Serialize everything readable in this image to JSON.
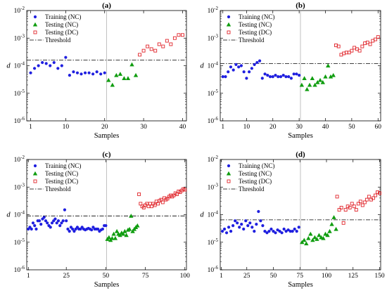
{
  "colors": {
    "training": "#1f1fdf",
    "testing_nc": "#109d10",
    "testing_dc": "#e0242a",
    "threshold": "#000000",
    "divider": "#a8a8a8"
  },
  "chart_data": [
    {
      "type": "scatter",
      "title": "(a)",
      "xlabel": "Samples",
      "ylabel": "d",
      "xlim": [
        0,
        41
      ],
      "ylim": [
        1e-06,
        0.01
      ],
      "yscale": "log",
      "xticks": [
        1,
        10,
        20,
        30,
        40
      ],
      "yticks": [
        "10^-6",
        "10^-5",
        "10^-4",
        "10^-3",
        "10^-2"
      ],
      "grid": false,
      "legend_position": "top-left",
      "divider_x": 20.5,
      "threshold": 0.00016,
      "series": [
        {
          "name": "Training (NC)",
          "x": [
            1,
            2,
            3,
            4,
            5,
            6,
            7,
            8,
            9,
            10,
            11,
            12,
            13,
            14,
            15,
            16,
            17,
            18,
            19,
            20
          ],
          "y": [
            5.5e-05,
            8e-05,
            0.0001,
            0.00013,
            0.00012,
            0.0001,
            0.00013,
            8e-05,
            0.0001,
            0.0002,
            4.5e-05,
            6e-05,
            5.5e-05,
            5e-05,
            5.5e-05,
            5.5e-05,
            5e-05,
            6e-05,
            5e-05,
            5.5e-05
          ]
        },
        {
          "name": "Testing (NC)",
          "x": [
            21,
            22,
            23,
            24,
            25,
            26,
            27,
            28
          ],
          "y": [
            3e-05,
            2e-05,
            4.5e-05,
            5e-05,
            3.5e-05,
            3.5e-05,
            0.00011,
            4.5e-05
          ]
        },
        {
          "name": "Testing (DC)",
          "x": [
            29,
            30,
            31,
            32,
            33,
            34,
            35,
            36,
            37,
            38,
            39,
            40
          ],
          "y": [
            0.00025,
            0.00035,
            0.0005,
            0.0004,
            0.00035,
            0.0006,
            0.0005,
            0.0008,
            0.0006,
            0.001,
            0.0013,
            0.0013
          ]
        },
        {
          "name": "Threshold",
          "y_constant": 0.00016
        }
      ]
    },
    {
      "type": "scatter",
      "title": "(b)",
      "xlabel": "Samples",
      "ylabel": "d",
      "xlim": [
        0,
        61
      ],
      "ylim": [
        1e-06,
        0.01
      ],
      "yscale": "log",
      "xticks": [
        1,
        10,
        20,
        30,
        40,
        50,
        60
      ],
      "yticks": [
        "10^-6",
        "10^-5",
        "10^-4",
        "10^-3",
        "10^-2"
      ],
      "grid": false,
      "legend_position": "top-left",
      "divider_x": 30.5,
      "threshold": 0.00012,
      "series": [
        {
          "name": "Training (NC)",
          "x": [
            1,
            2,
            3,
            4,
            5,
            6,
            7,
            8,
            9,
            10,
            11,
            12,
            13,
            14,
            15,
            16,
            17,
            18,
            19,
            20,
            21,
            22,
            23,
            24,
            25,
            26,
            27,
            28,
            29,
            30
          ],
          "y": [
            4e-05,
            4e-05,
            6e-05,
            9e-05,
            7e-05,
            0.00011,
            9e-05,
            0.0001,
            6e-05,
            3.5e-05,
            6e-05,
            8e-05,
            0.00011,
            0.00013,
            0.00015,
            3.5e-05,
            5e-05,
            4.5e-05,
            4e-05,
            4e-05,
            4.5e-05,
            4e-05,
            4e-05,
            4.5e-05,
            4e-05,
            4e-05,
            3.5e-05,
            5e-05,
            5e-05,
            4.5e-05
          ]
        },
        {
          "name": "Testing (NC)",
          "x": [
            31,
            32,
            33,
            34,
            35,
            36,
            37,
            38,
            39,
            40,
            41,
            42,
            43
          ],
          "y": [
            2e-05,
            3.5e-05,
            1.4e-05,
            2e-05,
            3.5e-05,
            2e-05,
            2.5e-05,
            3e-05,
            2.5e-05,
            4e-05,
            0.0001,
            4e-05,
            4.5e-05
          ]
        },
        {
          "name": "Testing (DC)",
          "x": [
            44,
            45,
            46,
            47,
            48,
            49,
            50,
            51,
            52,
            53,
            54,
            55,
            56,
            57,
            58,
            59,
            60
          ],
          "y": [
            0.00055,
            0.0005,
            0.00025,
            0.00028,
            0.0003,
            0.0003,
            0.00035,
            0.00045,
            0.0004,
            0.00035,
            0.0005,
            0.00065,
            0.0007,
            0.0006,
            0.0008,
            0.0009,
            0.0011
          ]
        },
        {
          "name": "Threshold",
          "y_constant": 0.00012
        }
      ]
    },
    {
      "type": "scatter",
      "title": "(c)",
      "xlabel": "Samples",
      "ylabel": "d",
      "xlim": [
        0,
        101
      ],
      "ylim": [
        1e-06,
        0.01
      ],
      "yscale": "log",
      "xticks": [
        1,
        25,
        50,
        75,
        100
      ],
      "yticks": [
        "10^-6",
        "10^-5",
        "10^-4",
        "10^-3",
        "10^-2"
      ],
      "grid": false,
      "legend_position": "top-left",
      "divider_x": 50.5,
      "threshold": 9e-05,
      "series": [
        {
          "name": "Training (NC)",
          "x": [
            1,
            2,
            3,
            4,
            5,
            6,
            7,
            8,
            9,
            10,
            11,
            12,
            13,
            14,
            15,
            16,
            17,
            18,
            19,
            20,
            21,
            22,
            23,
            24,
            25,
            26,
            27,
            28,
            29,
            30,
            31,
            32,
            33,
            34,
            35,
            36,
            37,
            38,
            39,
            40,
            41,
            42,
            43,
            44,
            45,
            46,
            47,
            48,
            49,
            50
          ],
          "y": [
            3e-05,
            3.5e-05,
            3e-05,
            5e-05,
            4e-05,
            3e-05,
            6e-05,
            6e-05,
            4.5e-05,
            7e-05,
            8e-05,
            6e-05,
            5e-05,
            4e-05,
            3.5e-05,
            5e-05,
            6e-05,
            7e-05,
            5e-05,
            6e-05,
            4e-05,
            5e-05,
            6e-05,
            0.00015,
            6e-05,
            3e-05,
            2.5e-05,
            3.5e-05,
            3e-05,
            2.5e-05,
            3e-05,
            3.5e-05,
            3e-05,
            3e-05,
            3.5e-05,
            3e-05,
            2.8e-05,
            3e-05,
            3.2e-05,
            3e-05,
            2.8e-05,
            3.5e-05,
            3e-05,
            3e-05,
            3e-05,
            2.5e-05,
            2.8e-05,
            3e-05,
            4e-05,
            4e-05
          ]
        },
        {
          "name": "Testing (NC)",
          "x": [
            51,
            52,
            53,
            54,
            55,
            56,
            57,
            58,
            59,
            60,
            61,
            62,
            63,
            64,
            65,
            66,
            67,
            68,
            69,
            70
          ],
          "y": [
            1.3e-05,
            1.5e-05,
            1.2e-05,
            1.4e-05,
            2e-05,
            1.4e-05,
            2.5e-05,
            2e-05,
            1.8e-05,
            2.2e-05,
            2e-05,
            2.5e-05,
            1.8e-05,
            2.8e-05,
            3e-05,
            9e-05,
            2.5e-05,
            3e-05,
            3.5e-05,
            4e-05
          ]
        },
        {
          "name": "Testing (DC)",
          "x": [
            71,
            72,
            73,
            74,
            75,
            76,
            77,
            78,
            79,
            80,
            81,
            82,
            83,
            84,
            85,
            86,
            87,
            88,
            89,
            90,
            91,
            92,
            93,
            94,
            95,
            96,
            97,
            98,
            99,
            100
          ],
          "y": [
            0.00055,
            0.00025,
            0.0002,
            0.00018,
            0.00022,
            0.00025,
            0.0002,
            0.00025,
            0.0002,
            0.00025,
            0.00022,
            0.0003,
            0.00025,
            0.00032,
            0.00035,
            0.00028,
            0.0004,
            0.00035,
            0.00038,
            0.00045,
            0.0005,
            0.00045,
            0.0005,
            0.0006,
            0.00055,
            0.0007,
            0.00065,
            0.00075,
            0.00085,
            0.0008
          ]
        },
        {
          "name": "Threshold",
          "y_constant": 9e-05
        }
      ]
    },
    {
      "type": "scatter",
      "title": "(d)",
      "xlabel": "Samples",
      "ylabel": "d",
      "xlim": [
        0,
        151
      ],
      "ylim": [
        1e-06,
        0.01
      ],
      "yscale": "log",
      "xticks": [
        1,
        25,
        50,
        75,
        100,
        125,
        150
      ],
      "yticks": [
        "10^-6",
        "10^-5",
        "10^-4",
        "10^-3",
        "10^-2"
      ],
      "grid": false,
      "legend_position": "top-left",
      "divider_x": 75.5,
      "threshold": 6.5e-05,
      "series": [
        {
          "name": "Training (NC)",
          "x": [
            2,
            4,
            6,
            8,
            10,
            12,
            14,
            16,
            18,
            20,
            22,
            24,
            26,
            28,
            30,
            32,
            34,
            36,
            38,
            40,
            42,
            44,
            46,
            48,
            50,
            52,
            54,
            56,
            58,
            60,
            62,
            64,
            66,
            68,
            70,
            72,
            74
          ],
          "y": [
            2.5e-05,
            3e-05,
            2.2e-05,
            3.5e-05,
            2.5e-05,
            4e-05,
            6e-05,
            5e-05,
            3.5e-05,
            4.5e-05,
            3e-05,
            6e-05,
            4e-05,
            5e-05,
            3.5e-05,
            2.5e-05,
            4.5e-05,
            0.00013,
            6e-05,
            4e-05,
            2.5e-05,
            2.2e-05,
            2.5e-05,
            3e-05,
            2.5e-05,
            2.2e-05,
            2.8e-05,
            2.5e-05,
            2.2e-05,
            3e-05,
            2.5e-05,
            2.8e-05,
            2.5e-05,
            2.5e-05,
            3e-05,
            2.5e-05,
            3.5e-05
          ]
        },
        {
          "name": "Testing (NC)",
          "x": [
            77,
            79,
            81,
            83,
            85,
            87,
            89,
            91,
            93,
            95,
            97,
            99,
            101,
            103,
            105,
            107,
            109
          ],
          "y": [
            1e-05,
            1.2e-05,
            9e-06,
            1.4e-05,
            2e-05,
            1.2e-05,
            1.5e-05,
            1.3e-05,
            1.8e-05,
            1.5e-05,
            1.4e-05,
            2e-05,
            1.8e-05,
            2.5e-05,
            4.5e-05,
            8e-05,
            3e-05
          ]
        },
        {
          "name": "Testing (DC)",
          "x": [
            110,
            112,
            114,
            116,
            118,
            120,
            122,
            124,
            126,
            128,
            130,
            132,
            134,
            136,
            138,
            140,
            142,
            144,
            146,
            148,
            150
          ],
          "y": [
            0.00045,
            0.00015,
            0.00018,
            5e-05,
            0.00015,
            0.0002,
            0.00018,
            0.00025,
            0.0002,
            0.00015,
            0.00025,
            0.0003,
            0.00022,
            0.00028,
            0.00035,
            0.00045,
            0.00035,
            0.0004,
            0.0005,
            0.00065,
            0.0006
          ]
        },
        {
          "name": "Threshold",
          "y_constant": 6.5e-05
        }
      ]
    }
  ]
}
